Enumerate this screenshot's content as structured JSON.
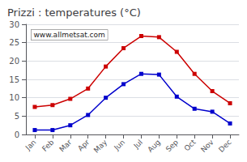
{
  "chart_data": {
    "type": "line",
    "title": "Prizzi : temperatures (°C)",
    "categories": [
      "Jan",
      "Feb",
      "Mar",
      "Apr",
      "May",
      "Jun",
      "Jul",
      "Aug",
      "Sep",
      "Oct",
      "Nov",
      "Dec"
    ],
    "series": [
      {
        "color": "#cc0000",
        "values": [
          7.5,
          8.0,
          9.7,
          12.5,
          18.5,
          23.5,
          26.8,
          26.5,
          22.5,
          16.5,
          11.8,
          8.5
        ]
      },
      {
        "color": "#0000cc",
        "values": [
          1.2,
          1.2,
          2.5,
          5.3,
          10.0,
          13.7,
          16.5,
          16.3,
          10.3,
          7.0,
          6.2,
          3.0
        ]
      }
    ],
    "ylim": [
      0,
      30
    ],
    "yticks": [
      0,
      5,
      10,
      15,
      20,
      25,
      30
    ],
    "grid": true,
    "marker": "square",
    "line_style": "solid",
    "annotation": "www.allmetsat.com"
  }
}
